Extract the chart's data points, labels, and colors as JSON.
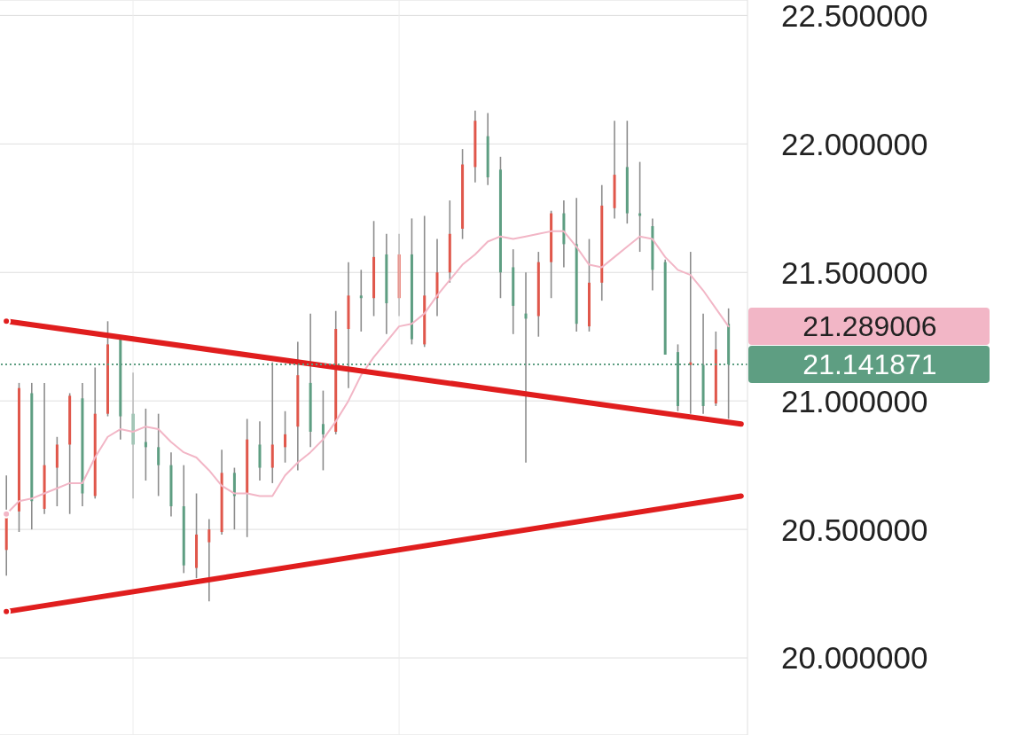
{
  "chart_data": {
    "type": "candlestick",
    "categories": [
      null,
      null,
      null,
      null,
      null,
      null,
      null,
      null,
      null,
      null,
      null,
      null,
      null,
      null,
      null,
      null,
      null,
      null,
      null,
      null,
      null,
      null,
      null,
      null,
      null,
      null,
      null,
      null,
      null,
      null,
      null,
      null,
      null,
      null,
      null,
      null,
      null,
      null,
      null,
      null,
      null,
      null,
      null,
      null,
      null,
      null,
      null,
      null,
      null,
      null,
      null,
      null,
      null,
      null,
      null,
      null,
      null,
      null,
      null
    ],
    "ohlc": [
      [
        20.42,
        20.71,
        20.32,
        20.55
      ],
      [
        20.57,
        21.07,
        20.49,
        21.05
      ],
      [
        21.03,
        21.07,
        20.5,
        20.61
      ],
      [
        20.58,
        21.07,
        20.56,
        20.75
      ],
      [
        20.74,
        20.86,
        20.59,
        20.83
      ],
      [
        20.83,
        21.03,
        20.56,
        21.02
      ],
      [
        21.01,
        21.07,
        20.59,
        20.64
      ],
      [
        20.63,
        21.13,
        20.62,
        20.95
      ],
      [
        20.95,
        21.31,
        20.94,
        21.22
      ],
      [
        21.24,
        21.25,
        20.85,
        20.94
      ],
      [
        20.95,
        21.11,
        20.62,
        20.83
      ],
      [
        20.84,
        20.97,
        20.69,
        20.82
      ],
      [
        20.82,
        20.95,
        20.63,
        20.75
      ],
      [
        20.75,
        20.8,
        20.55,
        20.59
      ],
      [
        20.59,
        20.75,
        20.33,
        20.36
      ],
      [
        20.35,
        20.64,
        20.31,
        20.48
      ],
      [
        20.45,
        20.54,
        20.22,
        20.5
      ],
      [
        20.49,
        20.81,
        20.48,
        20.72
      ],
      [
        20.72,
        20.74,
        20.5,
        20.63
      ],
      [
        20.64,
        20.93,
        20.47,
        20.85
      ],
      [
        20.83,
        20.92,
        20.69,
        20.74
      ],
      [
        20.74,
        21.15,
        20.68,
        20.83
      ],
      [
        20.82,
        20.96,
        20.76,
        20.87
      ],
      [
        20.9,
        21.23,
        20.73,
        21.1
      ],
      [
        21.07,
        21.34,
        20.82,
        20.88
      ],
      [
        20.91,
        21.04,
        20.73,
        20.87
      ],
      [
        20.88,
        21.35,
        20.87,
        21.28
      ],
      [
        21.28,
        21.54,
        21.05,
        21.41
      ],
      [
        21.41,
        21.51,
        21.27,
        21.4
      ],
      [
        21.4,
        21.7,
        21.33,
        21.56
      ],
      [
        21.57,
        21.65,
        21.26,
        21.38
      ],
      [
        21.4,
        21.65,
        21.33,
        21.57
      ],
      [
        21.57,
        21.71,
        21.22,
        21.24
      ],
      [
        21.22,
        21.72,
        21.21,
        21.41
      ],
      [
        21.4,
        21.63,
        21.33,
        21.5
      ],
      [
        21.5,
        21.78,
        21.46,
        21.65
      ],
      [
        21.67,
        21.98,
        21.63,
        21.92
      ],
      [
        21.91,
        22.13,
        21.85,
        22.09
      ],
      [
        22.03,
        22.12,
        21.84,
        21.87
      ],
      [
        21.9,
        21.95,
        21.4,
        21.5
      ],
      [
        21.52,
        21.59,
        21.26,
        21.37
      ],
      [
        21.34,
        21.5,
        20.76,
        21.32
      ],
      [
        21.33,
        21.58,
        21.25,
        21.54
      ],
      [
        21.54,
        21.74,
        21.4,
        21.73
      ],
      [
        21.73,
        21.78,
        21.52,
        21.61
      ],
      [
        21.61,
        21.79,
        21.27,
        21.3
      ],
      [
        21.29,
        21.63,
        21.27,
        21.46
      ],
      [
        21.46,
        21.84,
        21.39,
        21.76
      ],
      [
        21.75,
        22.09,
        21.71,
        21.88
      ],
      [
        21.91,
        22.09,
        21.69,
        21.73
      ],
      [
        21.73,
        21.93,
        21.58,
        21.72
      ],
      [
        21.68,
        21.71,
        21.43,
        21.51
      ],
      [
        21.54,
        21.55,
        21.18,
        21.18
      ],
      [
        21.19,
        21.22,
        20.96,
        20.98
      ],
      [
        21.14,
        21.58,
        20.95,
        21.15
      ],
      [
        21.14,
        21.34,
        20.95,
        20.98
      ],
      [
        20.99,
        21.27,
        20.98,
        21.2
      ],
      [
        21.3,
        21.36,
        20.93,
        21.141871
      ],
      null
    ],
    "colors": [
      "#e0574b",
      "#e0574b",
      "#5e9e82",
      "#e0574b",
      "#e0574b",
      "#e0574b",
      "#5e9e82",
      "#e0574b",
      "#e0574b",
      "#5e9e82",
      "#5e9e82",
      "#5e9e82",
      "#5e9e82",
      "#5e9e82",
      "#5e9e82",
      "#e0574b",
      "#e0574b",
      "#e0574b",
      "#5e9e82",
      "#e0574b",
      "#5e9e82",
      "#e0574b",
      "#e0574b",
      "#e0574b",
      "#5e9e82",
      "#5e9e82",
      "#e0574b",
      "#e0574b",
      "#5e9e82",
      "#e0574b",
      "#5e9e82",
      "#e0574b",
      "#5e9e82",
      "#e0574b",
      "#e0574b",
      "#e0574b",
      "#e0574b",
      "#e0574b",
      "#5e9e82",
      "#5e9e82",
      "#5e9e82",
      "#5e9e82",
      "#e0574b",
      "#e0574b",
      "#5e9e82",
      "#5e9e82",
      "#e0574b",
      "#e0574b",
      "#e0574b",
      "#5e9e82",
      "#5e9e82",
      "#5e9e82",
      "#5e9e82",
      "#5e9e82",
      "#e0574b",
      "#5e9e82",
      "#e0574b",
      "#5e9e82",
      null
    ],
    "series": [
      {
        "type": "line",
        "color": "#f2b6c6",
        "values": [
          20.56,
          20.61,
          20.62,
          20.64,
          20.66,
          20.68,
          20.68,
          20.78,
          20.86,
          20.89,
          20.88,
          20.9,
          20.89,
          20.84,
          20.8,
          20.78,
          20.73,
          20.67,
          20.64,
          20.64,
          20.63,
          20.63,
          20.71,
          20.76,
          20.8,
          20.85,
          20.92,
          21.0,
          21.1,
          21.17,
          21.23,
          21.29,
          21.3,
          21.34,
          21.41,
          21.47,
          21.53,
          21.57,
          21.62,
          21.64,
          21.63,
          21.64,
          21.65,
          21.66,
          21.66,
          21.6,
          21.53,
          21.52,
          21.56,
          21.6,
          21.64,
          21.63,
          21.56,
          21.51,
          21.49,
          21.43,
          21.36,
          21.29,
          null
        ]
      },
      {
        "type": "line",
        "color": "#e01e1e",
        "values": [
          21.31,
          null,
          null,
          null,
          null,
          null,
          null,
          null,
          null,
          null,
          null,
          null,
          null,
          null,
          null,
          null,
          null,
          null,
          null,
          null,
          null,
          null,
          null,
          null,
          null,
          null,
          null,
          null,
          null,
          null,
          null,
          null,
          null,
          null,
          null,
          null,
          null,
          null,
          null,
          null,
          null,
          null,
          null,
          null,
          null,
          null,
          null,
          null,
          null,
          null,
          null,
          null,
          null,
          null,
          null,
          null,
          null,
          null,
          20.91
        ]
      },
      {
        "type": "line",
        "color": "#e01e1e",
        "values": [
          20.18,
          null,
          null,
          null,
          null,
          null,
          null,
          null,
          null,
          null,
          null,
          null,
          null,
          null,
          null,
          null,
          null,
          null,
          null,
          null,
          null,
          null,
          null,
          null,
          null,
          null,
          null,
          null,
          null,
          null,
          null,
          null,
          null,
          null,
          null,
          null,
          null,
          null,
          null,
          null,
          null,
          null,
          null,
          null,
          null,
          null,
          null,
          null,
          null,
          null,
          null,
          null,
          null,
          null,
          null,
          null,
          null,
          null,
          20.63
        ]
      }
    ],
    "ylim": [
      19.7,
      22.56
    ],
    "yticks": [
      {
        "value": 20,
        "label": "20.000000"
      },
      {
        "value": 20.5,
        "label": "20.500000"
      },
      {
        "value": 21,
        "label": "21.000000"
      },
      {
        "value": 21.5,
        "label": "21.500000"
      },
      {
        "value": 22,
        "label": "22.000000"
      },
      {
        "value": 22.5,
        "label": "22.500000"
      }
    ],
    "annotations": [
      "21.289006"
    ],
    "ref_lines": [
      {
        "axis": "y",
        "value": 21.141871,
        "label": "21.141871",
        "color": "#5e9e82",
        "line_style": "dotted"
      }
    ],
    "grid": "y"
  }
}
